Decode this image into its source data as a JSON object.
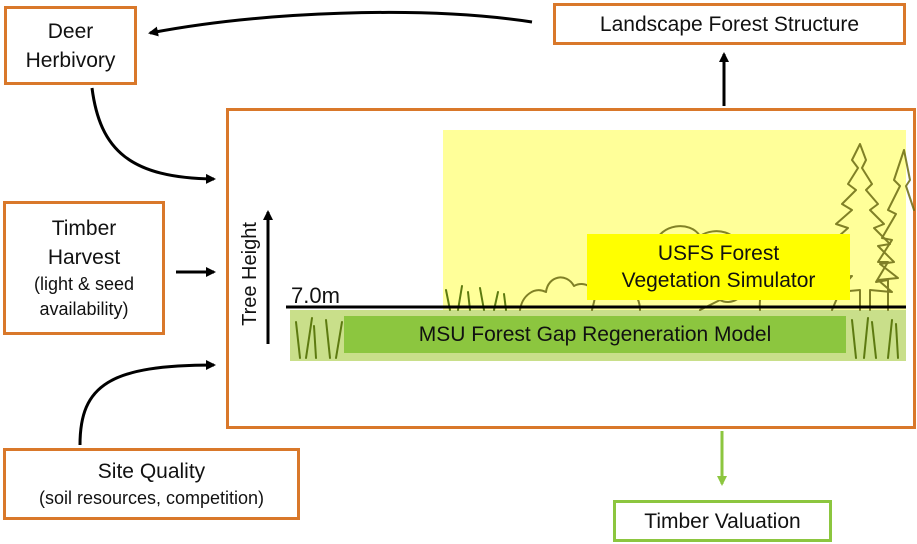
{
  "nodes": {
    "deer": {
      "line1": "Deer",
      "line2": "Herbivory"
    },
    "landscape": {
      "label": "Landscape Forest Structure"
    },
    "harvest": {
      "line1": "Timber",
      "line2": "Harvest",
      "line3": "(light & seed",
      "line4": "availability)"
    },
    "site": {
      "line1": "Site Quality",
      "line2": "(soil resources, competition)"
    },
    "valuation": {
      "label": "Timber Valuation"
    }
  },
  "model": {
    "axis_label": "Tree Height",
    "threshold_label": "7.0m",
    "usfs": {
      "line1": "USFS Forest",
      "line2": "Vegetation Simulator"
    },
    "msu": {
      "label": "MSU Forest Gap Regeneration Model"
    }
  },
  "colors": {
    "box_border": "#d9782a",
    "valuation_border": "#8cc63f",
    "yellow_zone": "#ffff99",
    "usfs_box": "#ffff00",
    "msu_box": "#8cc63f"
  }
}
